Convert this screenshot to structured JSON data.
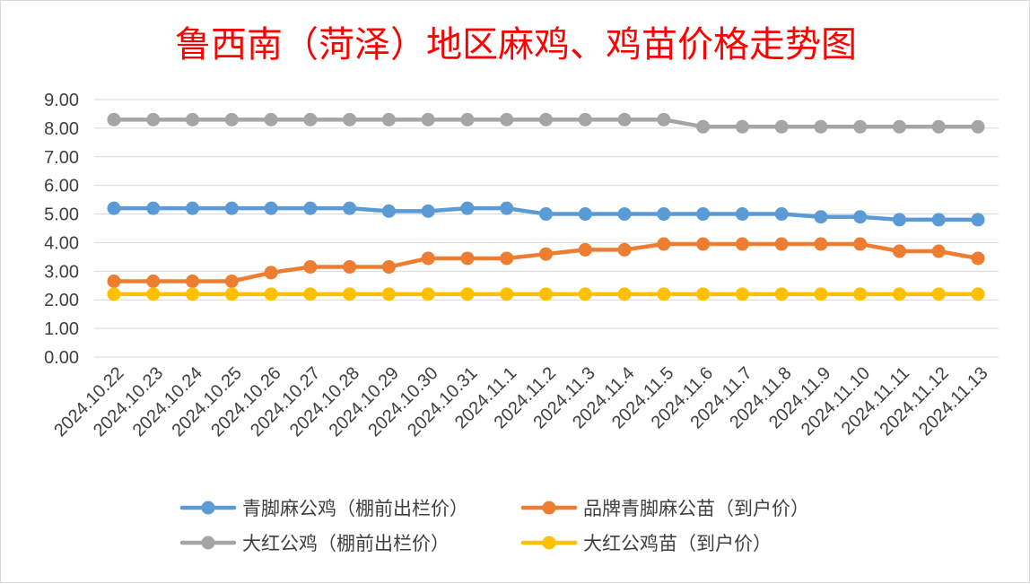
{
  "chart_data": {
    "type": "line",
    "title": "鲁西南（菏泽）地区麻鸡、鸡苗价格走势图",
    "xlabel": "",
    "ylabel": "",
    "ylim": [
      0,
      9
    ],
    "yticks": [
      "0.00",
      "1.00",
      "2.00",
      "3.00",
      "4.00",
      "5.00",
      "6.00",
      "7.00",
      "8.00",
      "9.00"
    ],
    "grid": "horizontal",
    "legend_position": "bottom",
    "categories": [
      "2024.10.22",
      "2024.10.23",
      "2024.10.24",
      "2024.10.25",
      "2024.10.26",
      "2024.10.27",
      "2024.10.28",
      "2024.10.29",
      "2024.10.30",
      "2024.10.31",
      "2024.11.1",
      "2024.11.2",
      "2024.11.3",
      "2024.11.4",
      "2024.11.5",
      "2024.11.6",
      "2024.11.7",
      "2024.11.8",
      "2024.11.9",
      "2024.11.10",
      "2024.11.11",
      "2024.11.12",
      "2024.11.13"
    ],
    "series": [
      {
        "name": "青脚麻公鸡（棚前出栏价）",
        "color": "#5b9bd5",
        "values": [
          5.2,
          5.2,
          5.2,
          5.2,
          5.2,
          5.2,
          5.2,
          5.1,
          5.1,
          5.2,
          5.2,
          5.0,
          5.0,
          5.0,
          5.0,
          5.0,
          5.0,
          5.0,
          4.9,
          4.9,
          4.8,
          4.8,
          4.8
        ]
      },
      {
        "name": "品牌青脚麻公苗（到户价）",
        "color": "#ed7d31",
        "values": [
          2.65,
          2.65,
          2.65,
          2.65,
          2.95,
          3.15,
          3.15,
          3.15,
          3.45,
          3.45,
          3.45,
          3.6,
          3.75,
          3.75,
          3.95,
          3.95,
          3.95,
          3.95,
          3.95,
          3.95,
          3.7,
          3.7,
          3.45
        ]
      },
      {
        "name": "大红公鸡（棚前出栏价）",
        "color": "#a5a5a5",
        "values": [
          8.3,
          8.3,
          8.3,
          8.3,
          8.3,
          8.3,
          8.3,
          8.3,
          8.3,
          8.3,
          8.3,
          8.3,
          8.3,
          8.3,
          8.3,
          8.05,
          8.05,
          8.05,
          8.05,
          8.05,
          8.05,
          8.05,
          8.05
        ]
      },
      {
        "name": "大红公鸡苗（到户价）",
        "color": "#ffc000",
        "values": [
          2.2,
          2.2,
          2.2,
          2.2,
          2.2,
          2.2,
          2.2,
          2.2,
          2.2,
          2.2,
          2.2,
          2.2,
          2.2,
          2.2,
          2.2,
          2.2,
          2.2,
          2.2,
          2.2,
          2.2,
          2.2,
          2.2,
          2.2
        ]
      }
    ]
  }
}
